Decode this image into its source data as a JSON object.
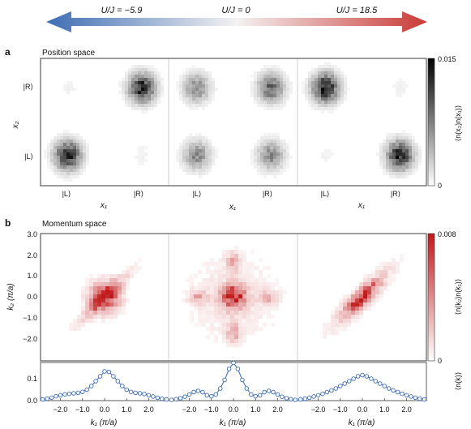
{
  "arrow": {
    "left_label": "U/J = −5.9",
    "mid_label": "U/J = 0",
    "right_label": "U/J = 18.5",
    "left_color": "#3d6db3",
    "right_color": "#c93a36"
  },
  "panel_a": {
    "letter": "a",
    "title": "Position space",
    "y_axis_label": "x₂",
    "x_axis_label": "x₁",
    "tick_L": "|L⟩",
    "tick_R": "|R⟩",
    "colorbar_max": "0.015",
    "colorbar_min": "0",
    "colorbar_label": "⟨n(x₂)n(x₁)⟩",
    "cmap": [
      "#ffffff",
      "#000000"
    ],
    "maps": [
      {
        "u_over_j": -5.9,
        "LL": 0.85,
        "LR": 0.05,
        "RL": 0.05,
        "RR": 0.85
      },
      {
        "u_over_j": 0,
        "LL": 0.45,
        "LR": 0.45,
        "RL": 0.45,
        "RR": 0.6
      },
      {
        "u_over_j": 18.5,
        "LL": 0.05,
        "LR": 0.85,
        "RL": 0.9,
        "RR": 0.05
      }
    ]
  },
  "panel_b": {
    "letter": "b",
    "title": "Momentum space",
    "y_axis_label": "k₂ (π/a)",
    "x_axis_label": "k₁ (π/a)",
    "y_ticks": [
      "3.0",
      "2.0",
      "1.0",
      "0.0",
      "−1.0",
      "−2.0"
    ],
    "colorbar_max": "0.008",
    "colorbar_min": "0",
    "colorbar_label": "⟨n(k₂)n(k₁)⟩",
    "cmap": [
      "#ffffff",
      "#c0191b"
    ]
  },
  "chart_data": [
    {
      "type": "line",
      "ylabel": "⟨n(k)⟩",
      "xlabel": "k₁ (π/a)",
      "ylim": [
        0,
        0.15
      ],
      "xlim": [
        -2.9,
        2.9
      ],
      "x_ticks": [
        "−2.0",
        "−1.0",
        "0.0",
        "1.0",
        "2.0"
      ],
      "y_ticks": [
        "0.0",
        "0.1"
      ],
      "x": [
        -2.8,
        -2.6,
        -2.4,
        -2.2,
        -2.0,
        -1.8,
        -1.6,
        -1.4,
        -1.2,
        -1.0,
        -0.8,
        -0.6,
        -0.4,
        -0.2,
        0.0,
        0.2,
        0.4,
        0.6,
        0.8,
        1.0,
        1.2,
        1.4,
        1.6,
        1.8,
        2.0,
        2.2,
        2.4,
        2.6,
        2.8
      ],
      "series": [
        {
          "values": [
            0.005,
            0.008,
            0.012,
            0.018,
            0.022,
            0.026,
            0.028,
            0.03,
            0.032,
            0.036,
            0.045,
            0.06,
            0.08,
            0.1,
            0.12,
            0.118,
            0.1,
            0.08,
            0.06,
            0.045,
            0.036,
            0.032,
            0.03,
            0.027,
            0.022,
            0.017,
            0.012,
            0.008,
            0.005
          ]
        },
        {
          "values": [
            0.003,
            0.006,
            0.01,
            0.016,
            0.025,
            0.035,
            0.04,
            0.035,
            0.022,
            0.018,
            0.025,
            0.05,
            0.085,
            0.13,
            0.155,
            0.13,
            0.085,
            0.05,
            0.025,
            0.018,
            0.022,
            0.035,
            0.04,
            0.035,
            0.025,
            0.016,
            0.01,
            0.006,
            0.003
          ]
        },
        {
          "values": [
            0.005,
            0.008,
            0.012,
            0.017,
            0.022,
            0.028,
            0.035,
            0.042,
            0.05,
            0.06,
            0.07,
            0.08,
            0.09,
            0.1,
            0.105,
            0.1,
            0.09,
            0.08,
            0.07,
            0.06,
            0.05,
            0.042,
            0.035,
            0.028,
            0.022,
            0.017,
            0.012,
            0.008,
            0.005
          ]
        }
      ]
    }
  ]
}
